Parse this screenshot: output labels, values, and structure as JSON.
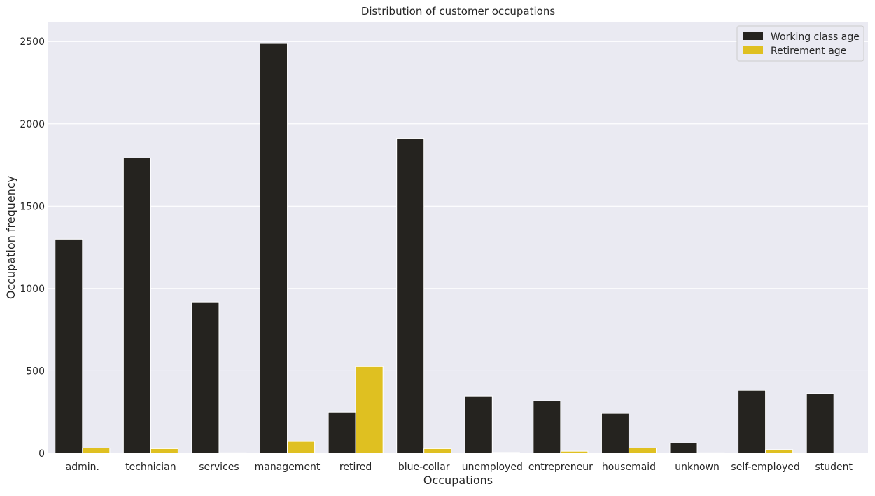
{
  "chart_data": {
    "type": "bar",
    "title": "Distribution of customer occupations",
    "xlabel": "Occupations",
    "ylabel": "Occupation frequency",
    "ylim": [
      0,
      2620
    ],
    "yticks": [
      0,
      500,
      1000,
      1500,
      2000,
      2500
    ],
    "grid": true,
    "legend_position": "top-right",
    "categories": [
      "admin.",
      "technician",
      "services",
      "management",
      "retired",
      "blue-collar",
      "unemployed",
      "entrepreneur",
      "housemaid",
      "unknown",
      "self-employed",
      "student"
    ],
    "series": [
      {
        "name": "Working class age",
        "color": "#25231f",
        "values": [
          1300,
          1793,
          918,
          2488,
          250,
          1912,
          348,
          318,
          242,
          62,
          382,
          362
        ]
      },
      {
        "name": "Retirement age",
        "color": "#dfc021",
        "values": [
          32,
          28,
          3,
          72,
          526,
          28,
          5,
          12,
          32,
          3,
          22,
          2
        ]
      }
    ]
  },
  "style": {
    "plot_background": "#eaeaf2",
    "grid_color": "#ffffff"
  }
}
